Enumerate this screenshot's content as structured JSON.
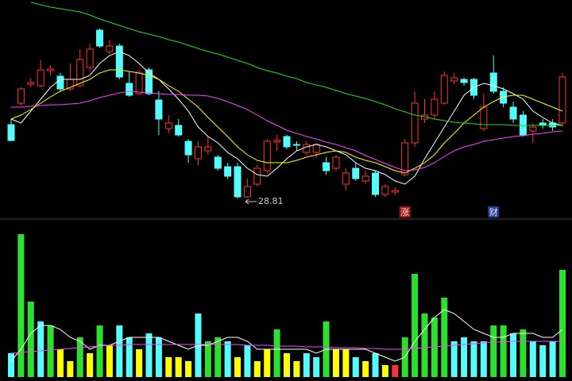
{
  "chart_data": {
    "type": "candlestick",
    "open": [
      33.46,
      34.81,
      36.01,
      35.91,
      36.86,
      36.51,
      35.71,
      35.91,
      37.06,
      39.41,
      38.06,
      38.41,
      36.06,
      35.41,
      36.91,
      35.01,
      33.21,
      33.41,
      32.41,
      31.31,
      31.81,
      31.41,
      30.81,
      30.81,
      28.91,
      29.71,
      30.56,
      32.36,
      32.71,
      32.21,
      31.71,
      31.71,
      31.06,
      30.71,
      29.71,
      30.71,
      29.91,
      30.41,
      29.06,
      29.21,
      30.31,
      32.31,
      33.81,
      34.06,
      34.81,
      36.21,
      36.31,
      36.31,
      33.21,
      36.71,
      35.56,
      34.56,
      34.06,
      33.06,
      33.56,
      33.56,
      33.56
    ],
    "high": [
      33.81,
      35.81,
      36.41,
      37.51,
      37.21,
      36.71,
      37.31,
      38.21,
      38.56,
      39.51,
      38.81,
      38.56,
      36.81,
      36.91,
      37.06,
      35.56,
      34.06,
      33.81,
      32.56,
      32.41,
      32.71,
      31.56,
      31.06,
      31.06,
      30.06,
      30.91,
      32.56,
      32.81,
      32.81,
      32.41,
      32.41,
      32.31,
      31.41,
      31.56,
      30.71,
      31.06,
      30.56,
      30.56,
      29.71,
      29.51,
      32.56,
      35.56,
      35.06,
      35.56,
      36.81,
      36.71,
      36.41,
      36.41,
      35.41,
      37.81,
      35.81,
      34.91,
      34.31,
      33.56,
      33.81,
      33.81,
      36.71
    ],
    "low": [
      32.41,
      34.66,
      35.81,
      35.81,
      36.56,
      35.56,
      35.56,
      35.81,
      36.81,
      38.31,
      37.91,
      36.31,
      35.21,
      35.31,
      35.31,
      32.81,
      32.91,
      32.71,
      31.06,
      30.91,
      31.56,
      30.56,
      30.06,
      28.81,
      28.86,
      29.56,
      30.41,
      31.81,
      31.91,
      31.81,
      31.56,
      31.41,
      30.31,
      30.56,
      29.31,
      29.91,
      29.71,
      28.91,
      28.91,
      29.01,
      30.21,
      32.06,
      33.56,
      33.81,
      34.71,
      36.01,
      35.91,
      35.06,
      33.06,
      35.41,
      34.56,
      33.56,
      32.71,
      32.31,
      33.21,
      33.06,
      33.31
    ],
    "close": [
      32.46,
      35.71,
      36.11,
      36.91,
      36.96,
      35.71,
      36.31,
      37.56,
      38.21,
      38.41,
      38.41,
      36.46,
      35.31,
      36.71,
      35.41,
      33.81,
      33.56,
      32.81,
      31.56,
      32.06,
      32.06,
      30.71,
      30.21,
      28.91,
      29.56,
      30.71,
      32.41,
      32.46,
      32.06,
      32.16,
      32.21,
      32.21,
      30.56,
      31.41,
      30.41,
      30.06,
      30.21,
      29.06,
      29.56,
      29.31,
      32.31,
      34.81,
      34.06,
      35.06,
      36.56,
      36.41,
      36.11,
      35.31,
      34.56,
      35.56,
      34.81,
      33.81,
      32.81,
      33.31,
      33.41,
      33.31,
      36.46
    ],
    "up_color": "#ff3232",
    "down_color": "#54fcfc",
    "ylim": [
      27.71,
      41.31
    ],
    "lines": [
      {
        "color": "#ffffff",
        "values": [
          33.81,
          33.56,
          34.31,
          35.06,
          35.81,
          36.31,
          36.31,
          36.31,
          36.56,
          37.31,
          37.81,
          38.06,
          37.81,
          37.31,
          36.71,
          36.31,
          35.71,
          35.06,
          34.31,
          33.31,
          32.71,
          32.31,
          31.71,
          31.31,
          30.71,
          30.31,
          30.21,
          30.71,
          31.31,
          31.81,
          32.06,
          32.21,
          32.06,
          31.81,
          31.56,
          31.06,
          30.71,
          30.56,
          30.31,
          29.91,
          29.71,
          30.21,
          31.31,
          32.31,
          33.31,
          34.31,
          35.31,
          35.81,
          36.06,
          35.91,
          35.71,
          35.41,
          35.06,
          34.31,
          33.91,
          33.56,
          33.41
        ]
      },
      {
        "color": "#ffff00",
        "values": [
          33.81,
          34.06,
          34.41,
          34.81,
          35.21,
          35.56,
          35.81,
          36.06,
          36.31,
          36.71,
          36.91,
          36.91,
          36.81,
          36.71,
          36.56,
          36.31,
          35.91,
          35.56,
          35.06,
          34.56,
          33.91,
          33.31,
          32.71,
          32.06,
          31.56,
          31.21,
          31.06,
          31.06,
          31.06,
          31.21,
          31.41,
          31.56,
          31.71,
          31.81,
          31.71,
          31.41,
          31.21,
          31.06,
          30.81,
          30.56,
          30.41,
          30.71,
          31.06,
          31.56,
          32.31,
          32.91,
          33.56,
          34.06,
          34.56,
          34.91,
          35.21,
          35.31,
          35.31,
          35.06,
          34.81,
          34.56,
          34.31
        ]
      },
      {
        "color": "#ff40ff",
        "values": [
          34.56,
          34.56,
          34.61,
          34.66,
          34.71,
          34.71,
          34.76,
          34.81,
          34.96,
          35.16,
          35.31,
          35.46,
          35.56,
          35.51,
          35.46,
          35.41,
          35.36,
          35.36,
          35.31,
          35.31,
          35.26,
          35.11,
          34.91,
          34.66,
          34.41,
          34.06,
          33.71,
          33.41,
          33.11,
          32.91,
          32.71,
          32.56,
          32.36,
          32.21,
          32.01,
          31.81,
          31.51,
          31.26,
          31.01,
          30.76,
          30.56,
          30.61,
          30.76,
          31.06,
          31.46,
          31.81,
          32.06,
          32.21,
          32.41,
          32.51,
          32.61,
          32.71,
          32.76,
          32.86,
          32.91,
          33.01,
          33.06
        ]
      },
      {
        "color": "#22dd22",
        "values": [
          null,
          null,
          41.16,
          41.01,
          40.86,
          40.76,
          40.66,
          40.56,
          40.36,
          40.11,
          39.91,
          39.71,
          39.51,
          39.31,
          39.16,
          39.01,
          38.81,
          38.66,
          38.46,
          38.26,
          38.06,
          37.91,
          37.71,
          37.51,
          37.31,
          37.06,
          36.86,
          36.71,
          36.51,
          36.36,
          36.11,
          35.96,
          35.81,
          35.61,
          35.41,
          35.26,
          35.11,
          34.91,
          34.71,
          34.46,
          34.26,
          34.06,
          33.96,
          33.81,
          33.71,
          33.61,
          33.56,
          33.51,
          33.46,
          33.46,
          33.46,
          33.41,
          33.41,
          33.41,
          33.41,
          33.41,
          33.41
        ]
      }
    ],
    "markers": [
      null,
      null,
      null,
      null,
      null,
      null,
      null,
      null,
      null,
      null,
      null,
      null,
      null,
      null,
      null,
      null,
      null,
      null,
      null,
      null,
      null,
      null,
      null,
      null,
      null,
      null,
      null,
      null,
      null,
      null,
      null,
      null,
      null,
      null,
      null,
      null,
      null,
      null,
      null,
      null,
      {
        "text": "涨",
        "color": "#a01818"
      },
      null,
      null,
      null,
      null,
      null,
      null,
      null,
      null,
      {
        "text": "财",
        "color": "#2040a0"
      },
      null,
      null,
      null,
      null,
      null,
      null,
      null
    ],
    "volume": {
      "ylim": [
        0,
        195
      ],
      "values": [
        30,
        180,
        95,
        70,
        65,
        35,
        20,
        50,
        30,
        65,
        40,
        65,
        50,
        35,
        55,
        50,
        25,
        25,
        20,
        80,
        45,
        50,
        45,
        25,
        40,
        20,
        35,
        60,
        30,
        20,
        30,
        25,
        70,
        35,
        35,
        25,
        20,
        30,
        15,
        15,
        50,
        130,
        80,
        75,
        100,
        45,
        50,
        45,
        45,
        65,
        65,
        55,
        60,
        45,
        40,
        45,
        135
      ],
      "colors": [
        "#54fcfc",
        "#2ee02e",
        "#2ee02e",
        "#54fcfc",
        "#2ee02e",
        "#ffff00",
        "#ffff00",
        "#2ee02e",
        "#ffff00",
        "#2ee02e",
        "#ffff00",
        "#54fcfc",
        "#54fcfc",
        "#ffff00",
        "#54fcfc",
        "#54fcfc",
        "#ffff00",
        "#ffff00",
        "#ffff00",
        "#54fcfc",
        "#2ee02e",
        "#2ee02e",
        "#54fcfc",
        "#ffff00",
        "#54fcfc",
        "#ffff00",
        "#ffff00",
        "#2ee02e",
        "#ffff00",
        "#ffff00",
        "#54fcfc",
        "#54fcfc",
        "#2ee02e",
        "#ffff00",
        "#ffff00",
        "#54fcfc",
        "#ffff00",
        "#54fcfc",
        "#ffff00",
        "#ff3030",
        "#2ee02e",
        "#2ee02e",
        "#2ee02e",
        "#2ee02e",
        "#2ee02e",
        "#54fcfc",
        "#54fcfc",
        "#54fcfc",
        "#54fcfc",
        "#2ee02e",
        "#2ee02e",
        "#54fcfc",
        "#2ee02e",
        "#54fcfc",
        "#54fcfc",
        "#54fcfc",
        "#2ee02e"
      ],
      "lines": [
        {
          "color": "#ffffff",
          "values": [
            20,
            35,
            55,
            65,
            65,
            60,
            50,
            45,
            35,
            40,
            40,
            45,
            50,
            50,
            50,
            50,
            45,
            40,
            35,
            40,
            40,
            45,
            50,
            50,
            45,
            35,
            35,
            35,
            35,
            35,
            35,
            30,
            35,
            35,
            35,
            35,
            35,
            30,
            25,
            20,
            25,
            45,
            60,
            75,
            85,
            80,
            70,
            60,
            55,
            50,
            50,
            55,
            55,
            55,
            50,
            50,
            60
          ]
        },
        {
          "color": "#ff40ff",
          "values": [
            30,
            31,
            32,
            33,
            34,
            35,
            36,
            37,
            38,
            39,
            40,
            40,
            41,
            41,
            41,
            41,
            41,
            41,
            41,
            41,
            41,
            41,
            41,
            41,
            40,
            40,
            40,
            39,
            39,
            39,
            38,
            38,
            38,
            37,
            37,
            37,
            36,
            36,
            35,
            35,
            35,
            36,
            37,
            38,
            39,
            40,
            41,
            42,
            43,
            44,
            44,
            45,
            45,
            45,
            45,
            45,
            45
          ]
        }
      ]
    }
  }
}
